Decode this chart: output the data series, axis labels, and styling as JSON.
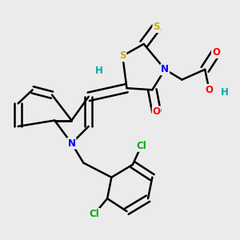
{
  "background_color": "#ebebeb",
  "bond_color": "#000000",
  "atom_colors": {
    "S": "#c8b000",
    "N": "#0000ff",
    "O": "#ff0000",
    "Cl": "#00aa00",
    "H": "#00aaaa",
    "C": "#000000"
  },
  "figsize": [
    3.0,
    3.0
  ],
  "dpi": 100
}
